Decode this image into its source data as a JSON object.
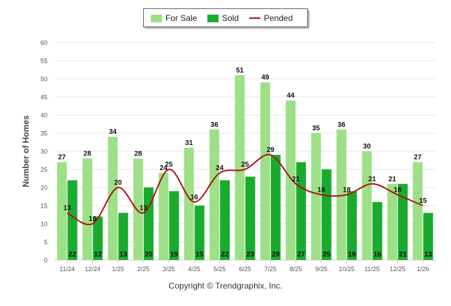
{
  "chart_data": {
    "type": "bar",
    "title": "",
    "xlabel": "",
    "ylabel": "Number of Homes",
    "ylim": [
      0,
      60
    ],
    "yticks": [
      0,
      5,
      10,
      15,
      20,
      25,
      30,
      35,
      40,
      45,
      50,
      55,
      60
    ],
    "grid": true,
    "legend_position": "top-center",
    "categories": [
      "11/24",
      "12/24",
      "1/25",
      "2/25",
      "3/25",
      "4/25",
      "5/25",
      "6/25",
      "7/25",
      "8/25",
      "9/25",
      "10/25",
      "11/25",
      "12/25",
      "1/26"
    ],
    "series": [
      {
        "name": "For Sale",
        "kind": "bar",
        "color": "#9de087",
        "values": [
          27,
          28,
          34,
          28,
          24,
          31,
          36,
          51,
          49,
          44,
          35,
          36,
          30,
          21,
          27
        ]
      },
      {
        "name": "Sold",
        "kind": "bar",
        "color": "#1aab2e",
        "values": [
          22,
          12,
          13,
          20,
          19,
          15,
          22,
          23,
          29,
          27,
          25,
          19,
          16,
          21,
          13
        ]
      },
      {
        "name": "Pended",
        "kind": "line",
        "color": "#b01116",
        "values": [
          13,
          10,
          20,
          13,
          25,
          16,
          24,
          25,
          29,
          21,
          18,
          18,
          21,
          18,
          15
        ]
      }
    ]
  },
  "credit": "Copyright © Trendgraphix, Inc."
}
